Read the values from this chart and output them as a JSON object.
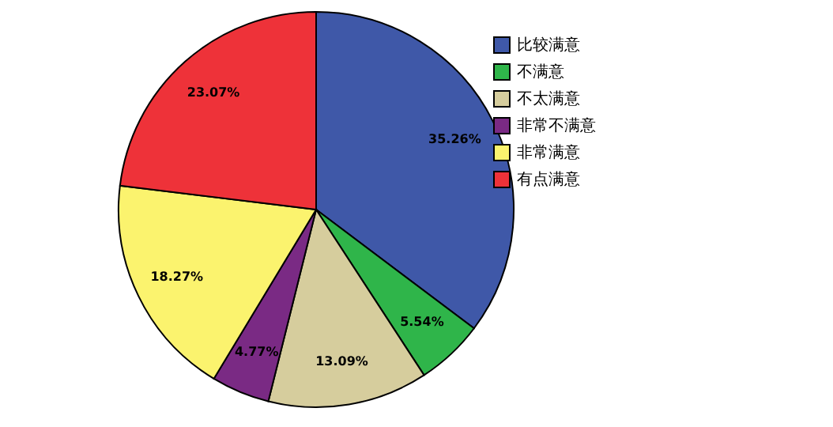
{
  "chart_data": {
    "type": "pie",
    "categories": [
      "比较满意",
      "不满意",
      "不太满意",
      "非常不满意",
      "非常满意",
      "有点满意"
    ],
    "values": [
      35.26,
      5.54,
      13.09,
      4.77,
      18.27,
      23.07
    ],
    "colors": [
      "#3f58a8",
      "#2fb54a",
      "#d6cd9d",
      "#7a2a84",
      "#fbf36e",
      "#ee3239"
    ],
    "value_labels": [
      "35.26%",
      "5.54%",
      "13.09%",
      "4.77%",
      "18.27%",
      "23.07%"
    ],
    "legend": "top right"
  }
}
